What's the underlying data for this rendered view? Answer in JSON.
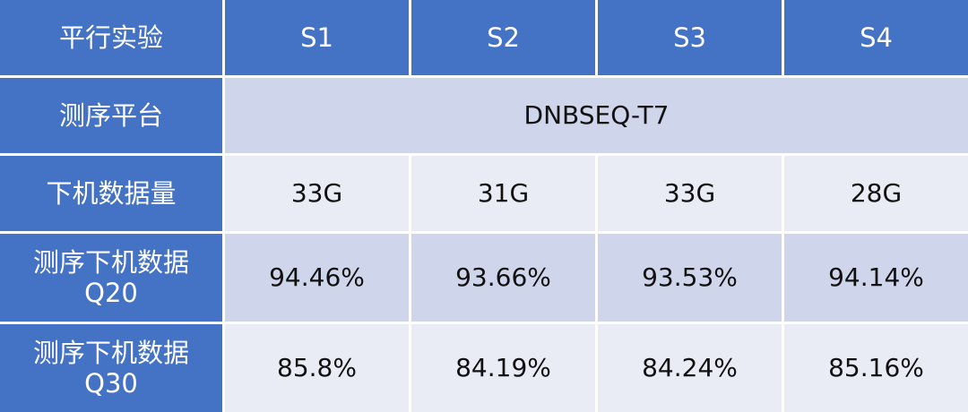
{
  "table": {
    "header": [
      "平行实验",
      "S1",
      "S2",
      "S3",
      "S4"
    ],
    "rows": [
      {
        "label": [
          "测序平台"
        ],
        "cells": [
          "DNBSEQ-T7"
        ]
      },
      {
        "label": [
          "下机数据量"
        ],
        "cells": [
          "33G",
          "31G",
          "33G",
          "28G"
        ]
      },
      {
        "label": [
          "测序下机数据",
          "Q20"
        ],
        "cells": [
          "94.46%",
          "93.66%",
          "93.53%",
          "94.14%"
        ]
      },
      {
        "label": [
          "测序下机数据",
          "Q30"
        ],
        "cells": [
          "85.8%",
          "84.19%",
          "84.24%",
          "85.16%"
        ]
      }
    ]
  }
}
